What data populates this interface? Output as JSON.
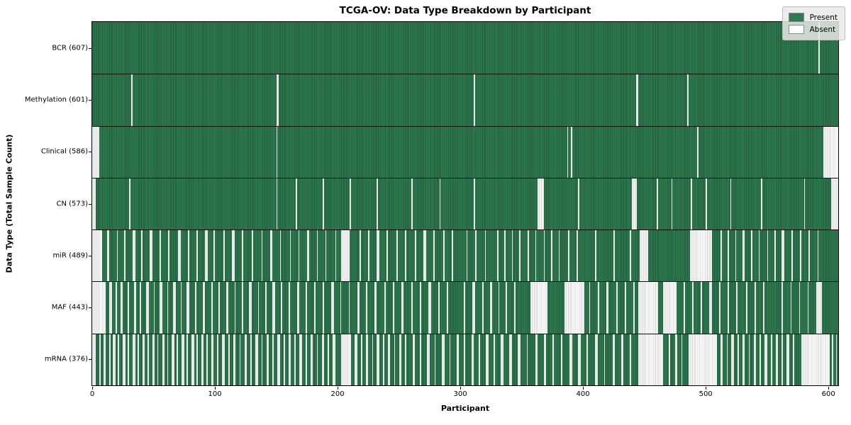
{
  "title": "TCGA-OV: Data Type Breakdown by Participant",
  "axes": {
    "xlabel": "Participant",
    "ylabel": "Data Type (Total Sample Count)"
  },
  "legend": {
    "present_label": "Present",
    "absent_label": "Absent"
  },
  "colors": {
    "present": "#2f7b50",
    "present_edge": "rgba(0,0,0,0.28)",
    "absent": "#ffffff",
    "absent_edge": "rgba(0,0,0,0.18)",
    "separator": "#111111"
  },
  "chart_data": {
    "type": "heatmap",
    "title": "TCGA-OV: Data Type Breakdown by Participant",
    "xlabel": "Participant",
    "ylabel": "Data Type (Total Sample Count)",
    "legend_entries": [
      "Present",
      "Absent"
    ],
    "legend_position": "upper right",
    "grid": false,
    "n_participants": 608,
    "xlim": [
      0,
      608
    ],
    "x_ticks": [
      0,
      100,
      200,
      300,
      400,
      500,
      600
    ],
    "rows": [
      {
        "name": "BCR",
        "label": "BCR (607)",
        "present_count": 607,
        "absent_count": 1,
        "absent_ranges": [
          [
            592,
            1
          ]
        ]
      },
      {
        "name": "Methylation",
        "label": "Methylation (601)",
        "present_count": 601,
        "absent_count": 7,
        "absent_ranges": [
          [
            32,
            1
          ],
          [
            150,
            2
          ],
          [
            311,
            1
          ],
          [
            443,
            2
          ],
          [
            485,
            1
          ]
        ]
      },
      {
        "name": "Clinical",
        "label": "Clinical (586)",
        "present_count": 586,
        "absent_count": 22,
        "absent_ranges": [
          [
            0,
            6
          ],
          [
            150,
            1
          ],
          [
            387,
            1
          ],
          [
            390,
            1
          ],
          [
            493,
            1
          ],
          [
            596,
            12
          ]
        ]
      },
      {
        "name": "CN",
        "label": "CN (573)",
        "present_count": 573,
        "absent_count": 35,
        "absent_ranges": [
          [
            0,
            3
          ],
          [
            30,
            1
          ],
          [
            150,
            1
          ],
          [
            166,
            1
          ],
          [
            188,
            1
          ],
          [
            210,
            1
          ],
          [
            232,
            1
          ],
          [
            260,
            1
          ],
          [
            283,
            1
          ],
          [
            311,
            1
          ],
          [
            363,
            5
          ],
          [
            396,
            1
          ],
          [
            440,
            4
          ],
          [
            460,
            1
          ],
          [
            472,
            1
          ],
          [
            488,
            1
          ],
          [
            500,
            1
          ],
          [
            520,
            1
          ],
          [
            545,
            1
          ],
          [
            580,
            1
          ],
          [
            602,
            6
          ]
        ]
      },
      {
        "name": "miR",
        "label": "miR (489)",
        "present_count": 489,
        "absent_count": 119,
        "absent_ranges": [
          [
            0,
            8
          ],
          [
            12,
            2
          ],
          [
            20,
            1
          ],
          [
            26,
            1
          ],
          [
            33,
            2
          ],
          [
            40,
            1
          ],
          [
            47,
            2
          ],
          [
            55,
            1
          ],
          [
            62,
            1
          ],
          [
            70,
            2
          ],
          [
            78,
            1
          ],
          [
            85,
            1
          ],
          [
            92,
            2
          ],
          [
            99,
            1
          ],
          [
            107,
            1
          ],
          [
            114,
            2
          ],
          [
            122,
            1
          ],
          [
            130,
            1
          ],
          [
            138,
            1
          ],
          [
            145,
            2
          ],
          [
            153,
            1
          ],
          [
            161,
            1
          ],
          [
            168,
            1
          ],
          [
            175,
            2
          ],
          [
            183,
            1
          ],
          [
            190,
            1
          ],
          [
            198,
            1
          ],
          [
            203,
            7
          ],
          [
            218,
            1
          ],
          [
            225,
            1
          ],
          [
            232,
            2
          ],
          [
            240,
            1
          ],
          [
            248,
            1
          ],
          [
            255,
            1
          ],
          [
            263,
            1
          ],
          [
            270,
            2
          ],
          [
            278,
            1
          ],
          [
            286,
            1
          ],
          [
            293,
            1
          ],
          [
            305,
            1
          ],
          [
            312,
            1
          ],
          [
            320,
            1
          ],
          [
            330,
            1
          ],
          [
            336,
            1
          ],
          [
            342,
            1
          ],
          [
            348,
            1
          ],
          [
            355,
            1
          ],
          [
            361,
            1
          ],
          [
            368,
            1
          ],
          [
            374,
            1
          ],
          [
            380,
            1
          ],
          [
            388,
            1
          ],
          [
            395,
            1
          ],
          [
            410,
            1
          ],
          [
            425,
            1
          ],
          [
            438,
            1
          ],
          [
            446,
            7
          ],
          [
            487,
            18
          ],
          [
            512,
            1
          ],
          [
            518,
            1
          ],
          [
            524,
            1
          ],
          [
            530,
            2
          ],
          [
            537,
            1
          ],
          [
            543,
            1
          ],
          [
            550,
            1
          ],
          [
            556,
            1
          ],
          [
            562,
            2
          ],
          [
            570,
            1
          ],
          [
            577,
            1
          ],
          [
            584,
            1
          ],
          [
            591,
            1
          ]
        ]
      },
      {
        "name": "MAF",
        "label": "MAF (443)",
        "present_count": 443,
        "absent_count": 165,
        "absent_ranges": [
          [
            0,
            11
          ],
          [
            14,
            2
          ],
          [
            19,
            1
          ],
          [
            23,
            2
          ],
          [
            29,
            1
          ],
          [
            34,
            2
          ],
          [
            39,
            1
          ],
          [
            44,
            2
          ],
          [
            50,
            1
          ],
          [
            55,
            2
          ],
          [
            61,
            1
          ],
          [
            66,
            2
          ],
          [
            72,
            1
          ],
          [
            77,
            2
          ],
          [
            84,
            1
          ],
          [
            90,
            2
          ],
          [
            97,
            1
          ],
          [
            103,
            1
          ],
          [
            109,
            2
          ],
          [
            116,
            1
          ],
          [
            122,
            1
          ],
          [
            128,
            2
          ],
          [
            135,
            1
          ],
          [
            141,
            1
          ],
          [
            147,
            2
          ],
          [
            154,
            1
          ],
          [
            160,
            1
          ],
          [
            167,
            2
          ],
          [
            174,
            1
          ],
          [
            181,
            1
          ],
          [
            188,
            1
          ],
          [
            195,
            2
          ],
          [
            202,
            1
          ],
          [
            209,
            1
          ],
          [
            216,
            2
          ],
          [
            223,
            1
          ],
          [
            230,
            2
          ],
          [
            238,
            1
          ],
          [
            245,
            1
          ],
          [
            252,
            2
          ],
          [
            260,
            1
          ],
          [
            267,
            1
          ],
          [
            274,
            2
          ],
          [
            282,
            1
          ],
          [
            289,
            1
          ],
          [
            303,
            1
          ],
          [
            310,
            2
          ],
          [
            318,
            1
          ],
          [
            324,
            2
          ],
          [
            331,
            1
          ],
          [
            337,
            1
          ],
          [
            344,
            1
          ],
          [
            357,
            14
          ],
          [
            385,
            16
          ],
          [
            405,
            1
          ],
          [
            412,
            1
          ],
          [
            419,
            2
          ],
          [
            427,
            1
          ],
          [
            434,
            1
          ],
          [
            441,
            1
          ],
          [
            445,
            16
          ],
          [
            465,
            11
          ],
          [
            482,
            1
          ],
          [
            489,
            1
          ],
          [
            496,
            1
          ],
          [
            503,
            2
          ],
          [
            511,
            1
          ],
          [
            518,
            1
          ],
          [
            525,
            1
          ],
          [
            533,
            1
          ],
          [
            540,
            1
          ],
          [
            547,
            1
          ],
          [
            562,
            1
          ],
          [
            569,
            1
          ],
          [
            576,
            1
          ],
          [
            583,
            1
          ],
          [
            590,
            5
          ]
        ]
      },
      {
        "name": "mRNA",
        "label": "mRNA (376)",
        "present_count": 376,
        "absent_count": 232,
        "absent_ranges": [
          [
            0,
            3
          ],
          [
            6,
            1
          ],
          [
            9,
            2
          ],
          [
            14,
            1
          ],
          [
            17,
            2
          ],
          [
            21,
            1
          ],
          [
            25,
            2
          ],
          [
            29,
            1
          ],
          [
            33,
            2
          ],
          [
            37,
            1
          ],
          [
            41,
            2
          ],
          [
            45,
            1
          ],
          [
            49,
            2
          ],
          [
            53,
            1
          ],
          [
            57,
            2
          ],
          [
            61,
            1
          ],
          [
            65,
            2
          ],
          [
            69,
            1
          ],
          [
            73,
            2
          ],
          [
            77,
            1
          ],
          [
            81,
            2
          ],
          [
            85,
            1
          ],
          [
            89,
            2
          ],
          [
            93,
            1
          ],
          [
            97,
            2
          ],
          [
            102,
            1
          ],
          [
            106,
            2
          ],
          [
            111,
            1
          ],
          [
            115,
            2
          ],
          [
            120,
            1
          ],
          [
            124,
            2
          ],
          [
            129,
            1
          ],
          [
            133,
            2
          ],
          [
            138,
            1
          ],
          [
            142,
            2
          ],
          [
            147,
            1
          ],
          [
            151,
            2
          ],
          [
            156,
            1
          ],
          [
            160,
            2
          ],
          [
            165,
            1
          ],
          [
            169,
            2
          ],
          [
            174,
            1
          ],
          [
            178,
            2
          ],
          [
            183,
            1
          ],
          [
            187,
            2
          ],
          [
            192,
            1
          ],
          [
            196,
            2
          ],
          [
            203,
            8
          ],
          [
            214,
            2
          ],
          [
            219,
            1
          ],
          [
            223,
            2
          ],
          [
            228,
            1
          ],
          [
            232,
            2
          ],
          [
            237,
            1
          ],
          [
            241,
            2
          ],
          [
            246,
            1
          ],
          [
            250,
            2
          ],
          [
            255,
            1
          ],
          [
            261,
            2
          ],
          [
            267,
            1
          ],
          [
            273,
            2
          ],
          [
            279,
            1
          ],
          [
            285,
            2
          ],
          [
            291,
            1
          ],
          [
            297,
            2
          ],
          [
            303,
            1
          ],
          [
            309,
            2
          ],
          [
            315,
            1
          ],
          [
            321,
            2
          ],
          [
            327,
            1
          ],
          [
            333,
            2
          ],
          [
            340,
            2
          ],
          [
            347,
            2
          ],
          [
            354,
            1
          ],
          [
            361,
            2
          ],
          [
            368,
            2
          ],
          [
            375,
            1
          ],
          [
            382,
            1
          ],
          [
            389,
            2
          ],
          [
            396,
            2
          ],
          [
            403,
            1
          ],
          [
            410,
            2
          ],
          [
            417,
            1
          ],
          [
            424,
            2
          ],
          [
            431,
            2
          ],
          [
            438,
            1
          ],
          [
            445,
            20
          ],
          [
            470,
            1
          ],
          [
            475,
            2
          ],
          [
            480,
            1
          ],
          [
            486,
            23
          ],
          [
            512,
            2
          ],
          [
            517,
            1
          ],
          [
            521,
            2
          ],
          [
            526,
            1
          ],
          [
            530,
            2
          ],
          [
            535,
            1
          ],
          [
            539,
            2
          ],
          [
            544,
            1
          ],
          [
            548,
            2
          ],
          [
            553,
            1
          ],
          [
            557,
            2
          ],
          [
            562,
            1
          ],
          [
            566,
            2
          ],
          [
            571,
            1
          ],
          [
            578,
            23
          ],
          [
            603,
            1
          ],
          [
            606,
            1
          ]
        ]
      }
    ]
  }
}
